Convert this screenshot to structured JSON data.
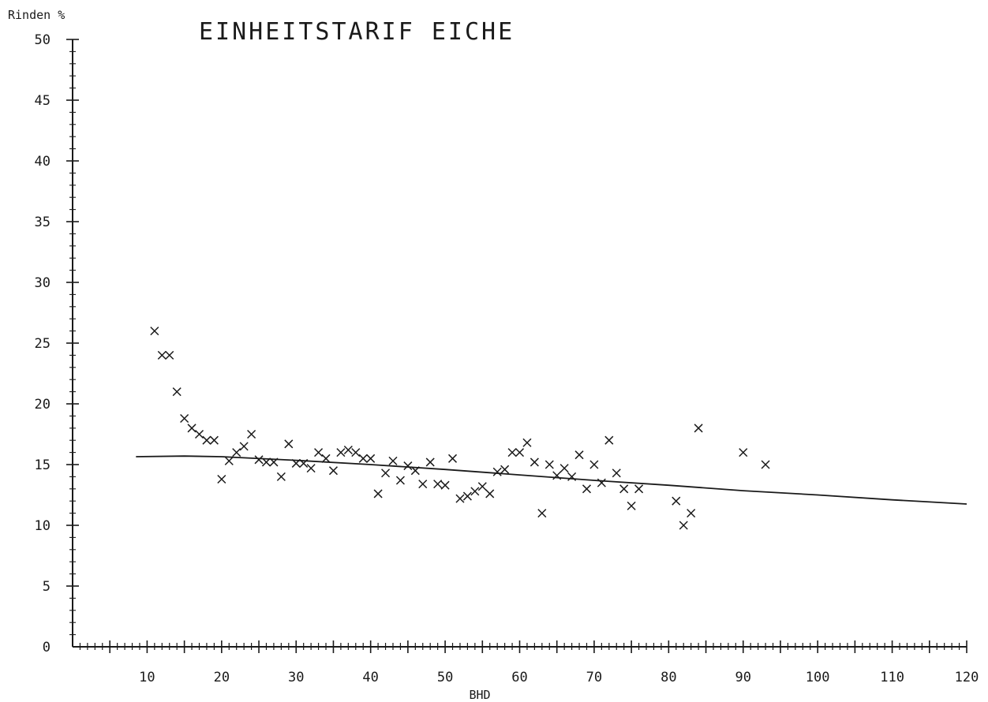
{
  "chart_data": {
    "type": "scatter",
    "title": "EINHEITSTARIF EICHE",
    "xlabel": "BHD",
    "ylabel": "Rinden %",
    "xlim": [
      0,
      120
    ],
    "ylim": [
      0,
      50
    ],
    "x_ticks": [
      10,
      20,
      30,
      40,
      50,
      60,
      70,
      80,
      90,
      100,
      110,
      120
    ],
    "y_ticks": [
      0,
      5,
      10,
      15,
      20,
      25,
      30,
      35,
      40,
      45,
      50
    ],
    "grid": false,
    "points": [
      [
        11,
        26
      ],
      [
        12,
        24
      ],
      [
        13,
        24
      ],
      [
        14,
        21
      ],
      [
        15,
        18.8
      ],
      [
        16,
        18
      ],
      [
        17,
        17.5
      ],
      [
        18,
        17
      ],
      [
        19,
        17
      ],
      [
        20,
        13.8
      ],
      [
        21,
        15.3
      ],
      [
        22,
        16
      ],
      [
        23,
        16.5
      ],
      [
        24,
        17.5
      ],
      [
        25,
        15.4
      ],
      [
        26,
        15.2
      ],
      [
        27,
        15.2
      ],
      [
        28,
        14
      ],
      [
        29,
        16.7
      ],
      [
        30,
        15.1
      ],
      [
        31,
        15.1
      ],
      [
        32,
        14.7
      ],
      [
        33,
        16
      ],
      [
        34,
        15.5
      ],
      [
        35,
        14.5
      ],
      [
        36,
        16
      ],
      [
        37,
        16.2
      ],
      [
        38,
        16
      ],
      [
        39,
        15.5
      ],
      [
        40,
        15.5
      ],
      [
        41,
        12.6
      ],
      [
        42,
        14.3
      ],
      [
        43,
        15.3
      ],
      [
        44,
        13.7
      ],
      [
        45,
        14.9
      ],
      [
        46,
        14.5
      ],
      [
        47,
        13.4
      ],
      [
        48,
        15.2
      ],
      [
        49,
        13.4
      ],
      [
        50,
        13.3
      ],
      [
        51,
        15.5
      ],
      [
        52,
        12.2
      ],
      [
        53,
        12.4
      ],
      [
        54,
        12.8
      ],
      [
        55,
        13.2
      ],
      [
        56,
        12.6
      ],
      [
        57,
        14.4
      ],
      [
        58,
        14.6
      ],
      [
        59,
        16
      ],
      [
        60,
        16
      ],
      [
        61,
        16.8
      ],
      [
        62,
        15.2
      ],
      [
        63,
        11
      ],
      [
        64,
        15
      ],
      [
        65,
        14.1
      ],
      [
        66,
        14.7
      ],
      [
        67,
        14
      ],
      [
        68,
        15.8
      ],
      [
        69,
        13
      ],
      [
        70,
        15
      ],
      [
        71,
        13.5
      ],
      [
        72,
        17
      ],
      [
        73,
        14.3
      ],
      [
        74,
        13
      ],
      [
        75,
        11.6
      ],
      [
        76,
        13
      ],
      [
        81,
        12
      ],
      [
        82,
        10
      ],
      [
        83,
        11
      ],
      [
        84,
        18
      ],
      [
        90,
        16
      ],
      [
        93,
        15
      ]
    ],
    "trend_line": {
      "x": [
        8.5,
        15,
        20,
        30,
        40,
        50,
        60,
        70,
        80,
        90,
        100,
        110,
        120
      ],
      "y": [
        15.65,
        15.7,
        15.65,
        15.35,
        15.0,
        14.6,
        14.15,
        13.7,
        13.3,
        12.85,
        12.5,
        12.1,
        11.75
      ]
    }
  }
}
